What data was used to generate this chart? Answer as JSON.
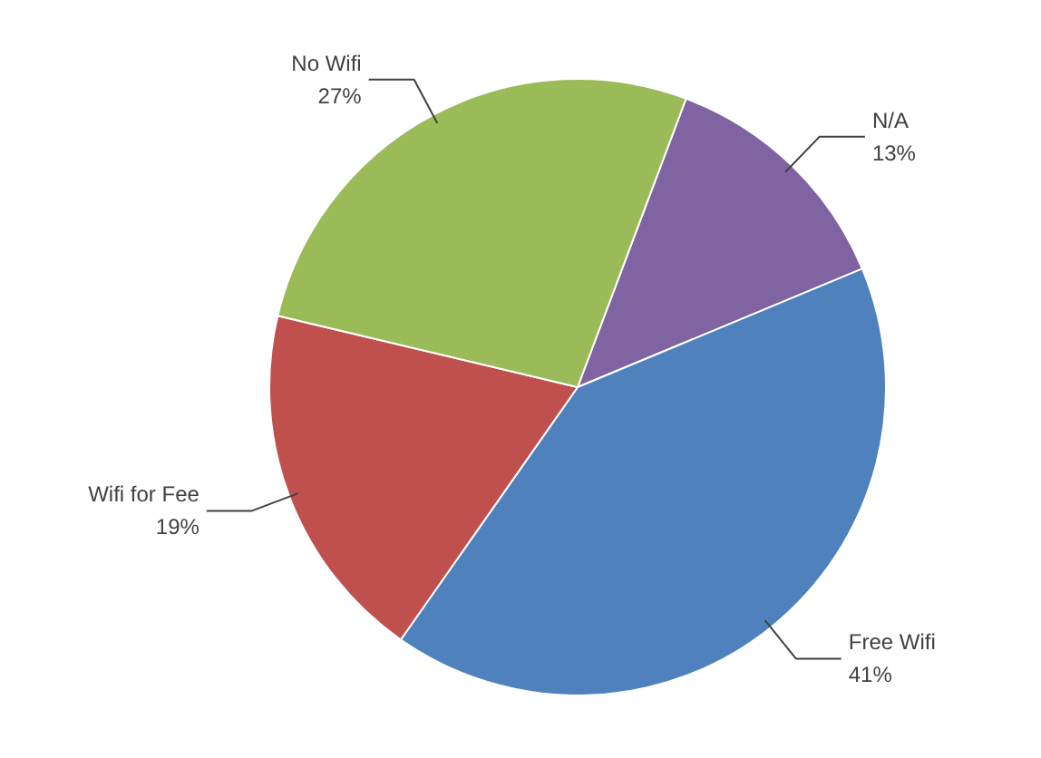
{
  "chart_data": {
    "type": "pie",
    "categories": [
      "N/A",
      "Free Wifi",
      "Wifi for Fee",
      "No Wifi"
    ],
    "values": [
      13,
      41,
      19,
      27
    ],
    "colors": [
      "#8064a2",
      "#4f81bd",
      "#c0504d",
      "#9bbb59"
    ],
    "value_labels": [
      "13%",
      "41%",
      "19%",
      "27%"
    ]
  }
}
